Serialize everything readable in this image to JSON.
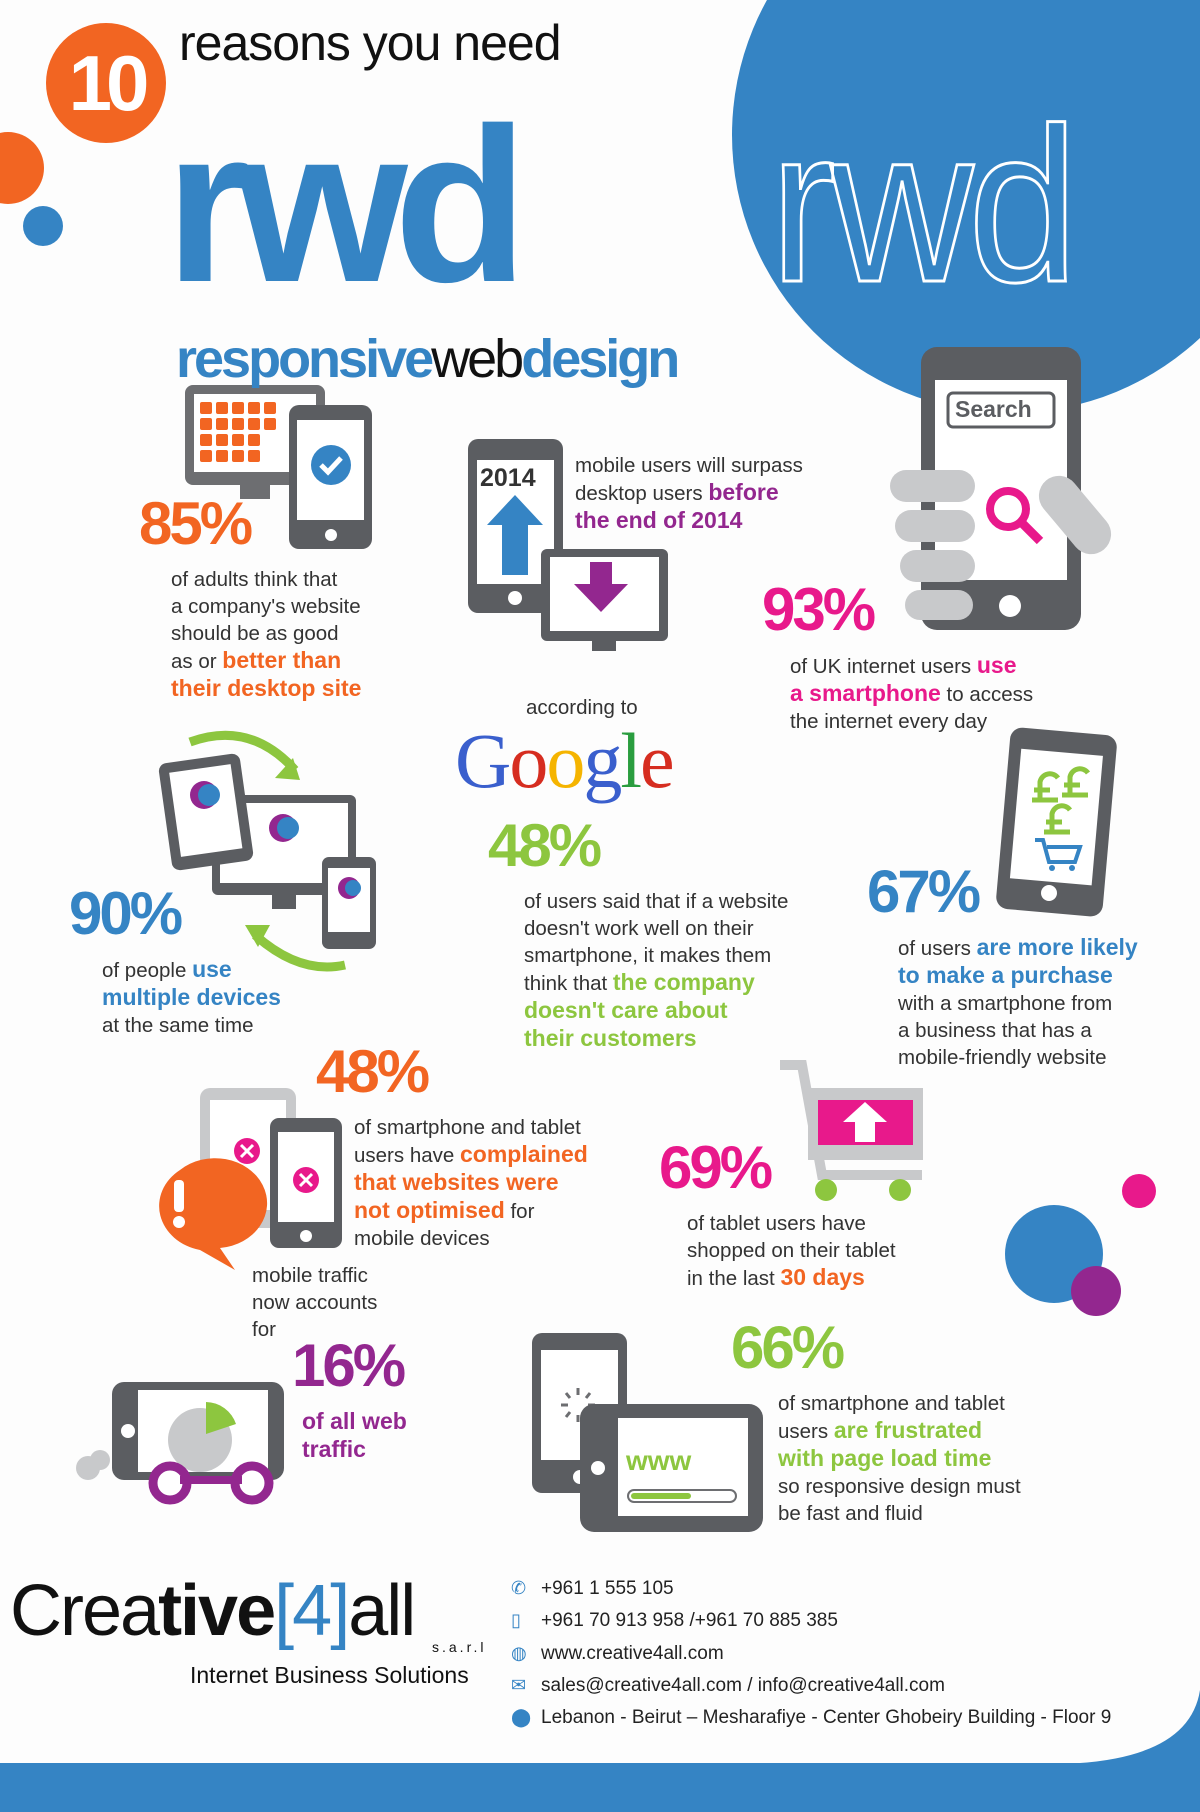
{
  "colors": {
    "orange": "#f26522",
    "blue": "#3584c4",
    "pink": "#e8198b",
    "purple": "#93278f",
    "green": "#8dc63f",
    "gray": "#5b5d61"
  },
  "header": {
    "number": "10",
    "reasons": "reasons you need",
    "rwd": "rwd",
    "rwd_outline": "rwd",
    "sub_1": "responsive",
    "sub_2": "web",
    "sub_3": "design"
  },
  "stats": {
    "s1": {
      "pct": "85%",
      "lines": [
        [
          [
            "of adults think that",
            ""
          ]
        ],
        [
          [
            "a company's website",
            ""
          ]
        ],
        [
          [
            "should be as good",
            ""
          ]
        ],
        [
          [
            "as or ",
            ""
          ],
          [
            "better than",
            "c-orange"
          ]
        ],
        [
          [
            "their desktop site",
            "c-orange"
          ]
        ]
      ]
    },
    "s2": {
      "icon_year": "2014",
      "lines": [
        [
          [
            "mobile users will surpass",
            ""
          ]
        ],
        [
          [
            "desktop users ",
            ""
          ],
          [
            "before",
            "c-purple"
          ]
        ],
        [
          [
            "the end of 2014",
            "c-purple"
          ]
        ]
      ]
    },
    "s3": {
      "search_label": "Search",
      "pct": "93%",
      "lines": [
        [
          [
            "of UK internet users ",
            ""
          ],
          [
            "use",
            "c-pink"
          ]
        ],
        [
          [
            "a smartphone",
            "c-pink"
          ],
          [
            " to access",
            ""
          ]
        ],
        [
          [
            "the internet every day",
            ""
          ]
        ]
      ]
    },
    "s4": {
      "intro": "according to",
      "google": "Google",
      "pct": "48%",
      "lines": [
        [
          [
            "of users said that if a website",
            ""
          ]
        ],
        [
          [
            "doesn't work well on their",
            ""
          ]
        ],
        [
          [
            "smartphone, it makes them",
            ""
          ]
        ],
        [
          [
            "think that ",
            ""
          ],
          [
            "the company",
            "c-green"
          ]
        ],
        [
          [
            "doesn't care about",
            "c-green"
          ]
        ],
        [
          [
            "their customers",
            "c-green"
          ]
        ]
      ]
    },
    "s5": {
      "pct": "90%",
      "lines": [
        [
          [
            "of people ",
            ""
          ],
          [
            "use",
            "c-blue"
          ]
        ],
        [
          [
            "multiple devices",
            "c-blue"
          ]
        ],
        [
          [
            "at the same time",
            ""
          ]
        ]
      ]
    },
    "s6": {
      "pct": "67%",
      "lines": [
        [
          [
            "of users ",
            ""
          ],
          [
            "are more likely",
            "c-blue"
          ]
        ],
        [
          [
            "to make a purchase",
            "c-blue"
          ]
        ],
        [
          [
            "with a smartphone from",
            ""
          ]
        ],
        [
          [
            "a business that has a",
            ""
          ]
        ],
        [
          [
            "mobile-friendly website",
            ""
          ]
        ]
      ]
    },
    "s7": {
      "pct": "48%",
      "lines": [
        [
          [
            "of smartphone and tablet",
            ""
          ]
        ],
        [
          [
            "users have ",
            ""
          ],
          [
            "complained",
            "c-orange"
          ]
        ],
        [
          [
            "that websites were",
            "c-orange"
          ]
        ],
        [
          [
            "not optimised",
            "c-orange"
          ],
          [
            " for",
            ""
          ]
        ],
        [
          [
            "mobile devices",
            ""
          ]
        ]
      ]
    },
    "s8": {
      "pct": "69%",
      "lines": [
        [
          [
            "of tablet users have",
            ""
          ]
        ],
        [
          [
            "shopped on their tablet",
            ""
          ]
        ],
        [
          [
            "in the last ",
            ""
          ],
          [
            "30 days",
            "c-orange"
          ]
        ]
      ]
    },
    "s9": {
      "pct": "16%",
      "intro_lines": [
        [
          [
            "mobile traffic",
            ""
          ]
        ],
        [
          [
            "now accounts",
            ""
          ]
        ],
        [
          [
            "for",
            ""
          ]
        ]
      ],
      "lines": [
        [
          [
            "of all web",
            "c-purple"
          ]
        ],
        [
          [
            "traffic",
            "c-purple"
          ]
        ]
      ]
    },
    "s10": {
      "pct": "66%",
      "www": "www",
      "lines": [
        [
          [
            "of smartphone and tablet",
            ""
          ]
        ],
        [
          [
            "users ",
            ""
          ],
          [
            "are frustrated",
            "c-green"
          ]
        ],
        [
          [
            "with page load time",
            "c-green"
          ]
        ],
        [
          [
            "so responsive design must",
            ""
          ]
        ],
        [
          [
            "be fast and fluid",
            ""
          ]
        ]
      ]
    }
  },
  "footer": {
    "logo": {
      "part1": "Crea",
      "part2": "tive",
      "part3": "[4]",
      "part4": "all",
      "sarl": "s.a.r.l",
      "tagline": "Internet Business Solutions"
    },
    "contacts": [
      {
        "icon": "phone-icon",
        "text": "+961 1 555 105"
      },
      {
        "icon": "mobile-icon",
        "text": "+961 70 913 958 /+961 70 885 385"
      },
      {
        "icon": "globe-icon",
        "text": "www.creative4all.com"
      },
      {
        "icon": "email-icon",
        "text": "sales@creative4all.com / info@creative4all.com"
      },
      {
        "icon": "location-pin-icon",
        "text": "Lebanon - Beirut – Mesharafiye - Center Ghobeiry Building - Floor 9"
      }
    ]
  },
  "watermark": "Creative[4]all s.a.r.l Internet Business Solutions"
}
